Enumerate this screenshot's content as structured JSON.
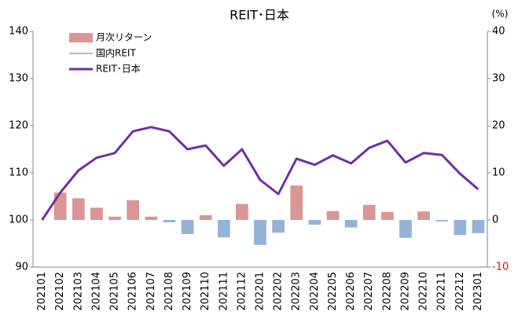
{
  "chart_data": {
    "type": "bar_line",
    "title": "REIT･日本",
    "y2_unit": "(%)",
    "categories": [
      "202101",
      "202102",
      "202103",
      "202104",
      "202105",
      "202106",
      "202107",
      "202108",
      "202109",
      "202110",
      "202111",
      "202112",
      "202201",
      "202202",
      "202203",
      "202204",
      "202205",
      "202206",
      "202207",
      "202208",
      "202209",
      "202210",
      "202211",
      "202212",
      "202301"
    ],
    "series": [
      {
        "name": "月次リターン",
        "type": "bar",
        "axis": "y2",
        "color": "#d99694",
        "negative_color": "#95b3d7",
        "values": [
          null,
          5.8,
          4.6,
          2.6,
          0.7,
          4.2,
          0.7,
          -0.5,
          -3.0,
          1.0,
          -3.7,
          3.4,
          -5.3,
          -2.7,
          7.3,
          -1.0,
          1.9,
          -1.6,
          3.2,
          1.7,
          -3.8,
          1.8,
          -0.3,
          -3.2,
          -2.8
        ]
      },
      {
        "name": "国内REIT",
        "type": "line",
        "axis": "y",
        "color": "#4f81bd",
        "width": 1,
        "values": [
          null,
          null,
          null,
          null,
          null,
          null,
          null,
          null,
          null,
          null,
          null,
          null,
          null,
          null,
          null,
          null,
          null,
          null,
          null,
          null,
          null,
          null,
          null,
          null,
          null
        ]
      },
      {
        "name": "REIT･日本",
        "type": "line",
        "axis": "y",
        "color": "#7030a0",
        "width": 3,
        "values": [
          100,
          105.8,
          110.5,
          113.2,
          114.2,
          118.8,
          119.7,
          118.8,
          115,
          115.8,
          111.5,
          115,
          108.5,
          105.5,
          113,
          111.7,
          113.7,
          112,
          115.3,
          116.8,
          112.2,
          114.2,
          113.8,
          109.8,
          106.5
        ]
      }
    ],
    "ylim": [
      90,
      140
    ],
    "yticks": [
      90,
      100,
      110,
      120,
      130,
      140
    ],
    "y2lim": [
      -10,
      40
    ],
    "y2ticks": [
      -10,
      0,
      10,
      20,
      30,
      40
    ],
    "y2_negative_tick_color": "#ff0000",
    "legend": "top-left"
  }
}
